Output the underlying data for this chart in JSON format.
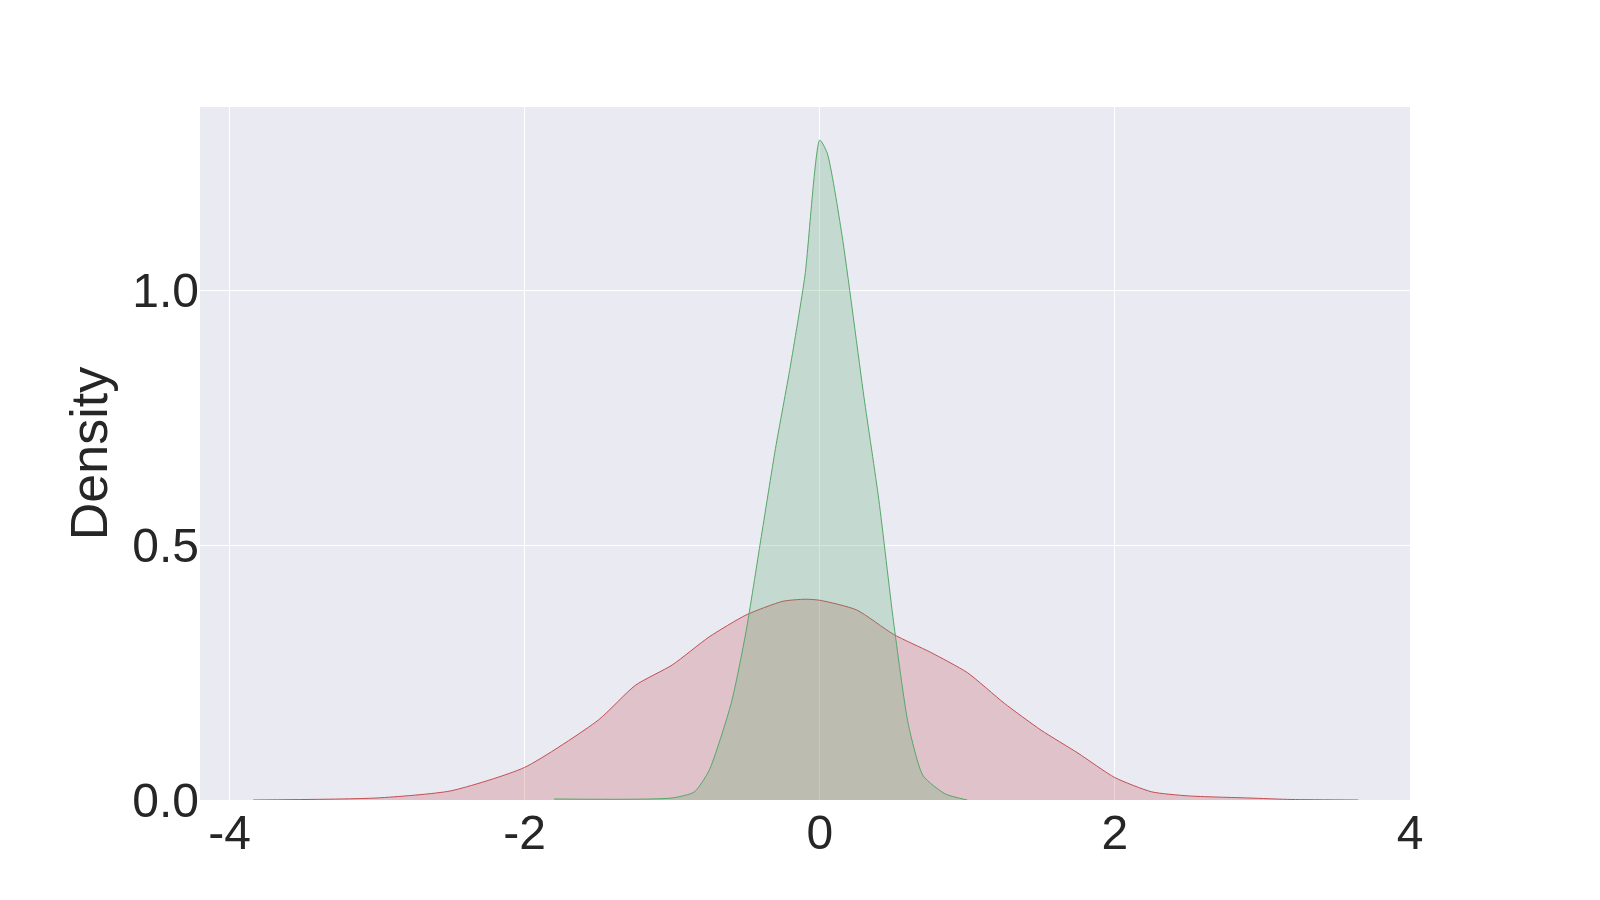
{
  "chart_data": {
    "type": "area",
    "ylabel": "Density",
    "series": [
      {
        "color": "#c44e52",
        "x": [
          -3.84,
          -3.0,
          -2.5,
          -2.0,
          -1.5,
          -1.25,
          -1.0,
          -0.75,
          -0.5,
          -0.25,
          -0.1,
          0.0,
          0.25,
          0.5,
          0.75,
          1.0,
          1.25,
          1.5,
          1.75,
          2.0,
          2.25,
          2.5,
          2.9,
          3.2,
          3.65
        ],
        "values": [
          0.0,
          0.004,
          0.018,
          0.064,
          0.157,
          0.225,
          0.265,
          0.32,
          0.363,
          0.39,
          0.394,
          0.392,
          0.373,
          0.325,
          0.29,
          0.25,
          0.19,
          0.137,
          0.092,
          0.044,
          0.016,
          0.008,
          0.004,
          0.001,
          0.0
        ]
      },
      {
        "color": "#55a868",
        "x": [
          -1.8,
          -1.0,
          -0.85,
          -0.75,
          -0.6,
          -0.5,
          -0.4,
          -0.3,
          -0.2,
          -0.1,
          0.0,
          0.05,
          0.15,
          0.3,
          0.4,
          0.5,
          0.6,
          0.7,
          0.85,
          1.0
        ],
        "values": [
          0.002,
          0.004,
          0.016,
          0.058,
          0.19,
          0.33,
          0.51,
          0.69,
          0.85,
          1.03,
          1.295,
          1.27,
          1.11,
          0.79,
          0.59,
          0.35,
          0.149,
          0.048,
          0.012,
          0.0
        ]
      }
    ],
    "xlim": [
      -4.2,
      4.0
    ],
    "xticks": [
      -4,
      -2,
      0,
      2,
      4
    ],
    "ylim": [
      0,
      1.36
    ],
    "yticks": [
      {
        "value": 0,
        "label": "0.0"
      },
      {
        "value": 0.5,
        "label": "0.5"
      },
      {
        "value": 1.0,
        "label": "1.0"
      }
    ],
    "grid": true,
    "legend": false
  }
}
